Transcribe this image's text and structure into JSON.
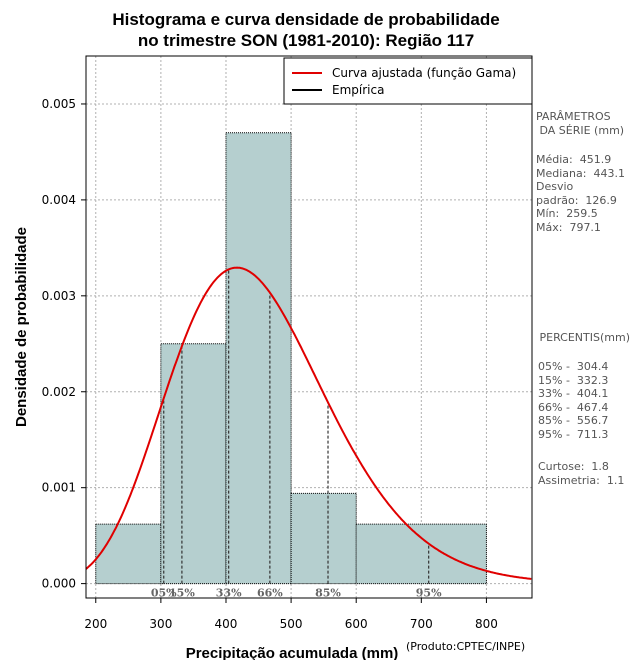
{
  "chart_data": {
    "type": "histogram",
    "title_lines": [
      "Histograma e curva densidade de probabilidade",
      "no trimestre SON (1981-2010): Região 117"
    ],
    "xlabel": "Precipitação acumulada (mm)",
    "ylabel": "Densidade de probabilidade",
    "credit": "(Produto:CPTEC/INPE)",
    "xlim": [
      185,
      870
    ],
    "ylim": [
      -0.00015,
      0.0055
    ],
    "x_ticks": [
      200,
      300,
      400,
      500,
      600,
      700,
      800
    ],
    "x_tick_labels": [
      "200",
      "300",
      "400",
      "500",
      "600",
      "700",
      "800"
    ],
    "y_ticks": [
      0.0,
      0.001,
      0.002,
      0.003,
      0.004,
      0.005
    ],
    "y_tick_labels": [
      "0.000",
      "0.001",
      "0.002",
      "0.003",
      "0.004",
      "0.005"
    ],
    "bins": [
      {
        "x0": 200,
        "x1": 300,
        "density": 0.00062
      },
      {
        "x0": 300,
        "x1": 400,
        "density": 0.0025
      },
      {
        "x0": 400,
        "x1": 500,
        "density": 0.0047
      },
      {
        "x0": 500,
        "x1": 600,
        "density": 0.00094
      },
      {
        "x0": 600,
        "x1": 800,
        "density": 0.00062
      }
    ],
    "gamma_fit": {
      "shape": 13.0,
      "rate": 0.0288,
      "color": "#e00000"
    },
    "percentiles": [
      {
        "label": "05%",
        "value": 304.4
      },
      {
        "label": "15%",
        "value": 332.3
      },
      {
        "label": "33%",
        "value": 404.1
      },
      {
        "label": "66%",
        "value": 467.4
      },
      {
        "label": "85%",
        "value": 556.7
      },
      {
        "label": "95%",
        "value": 711.3
      }
    ],
    "legend": [
      {
        "label": "Curva ajustada (função Gama)",
        "color": "#e00000"
      },
      {
        "label": "Empírica",
        "color": "#000000"
      }
    ],
    "grid": true,
    "bar_color": "#b5cfcf",
    "legend_position": "top-right"
  },
  "sidebar": {
    "params_title": "PARÂMETROS\n DA SÉRIE (mm)",
    "params_body": "Média:  451.9\nMediana:  443.1\nDesvio\npadrão:  126.9\nMín:  259.5\nMáx:  797.1",
    "percentis_title": " PERCENTIS(mm)",
    "percentis_body": "05% -  304.4\n15% -  332.3\n33% -  404.1\n66% -  467.4\n85% -  556.7\n95% -  711.3",
    "stats_body": "Curtose:  1.8\nAssimetria:  1.1"
  }
}
